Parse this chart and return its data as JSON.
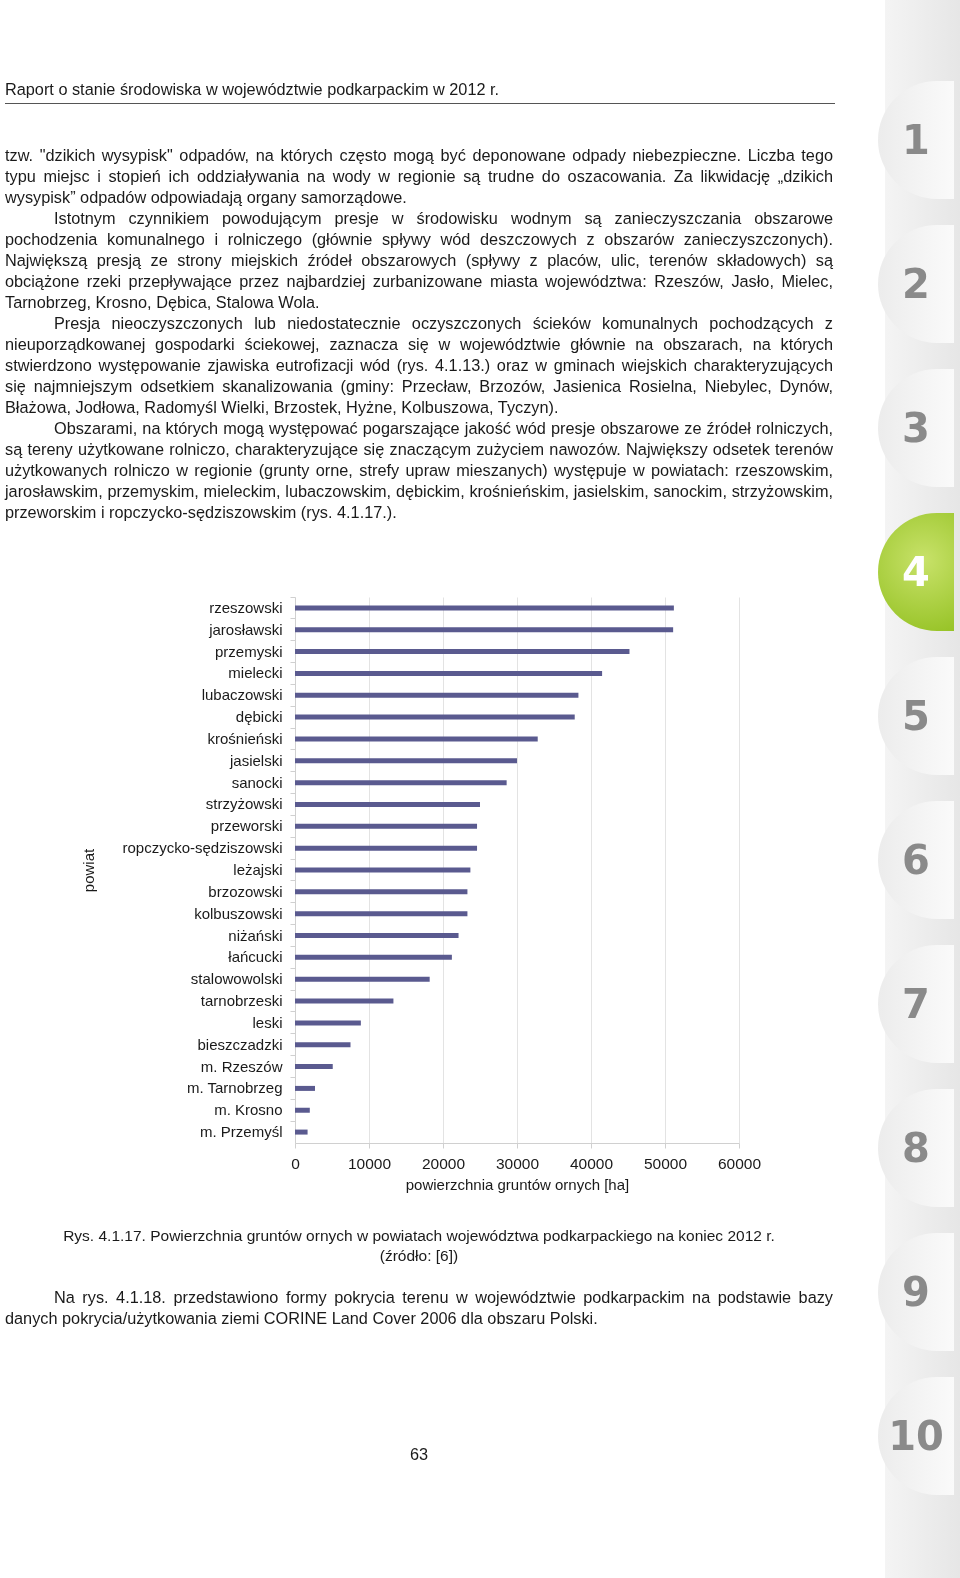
{
  "chart_data": {
    "type": "bar",
    "orientation": "horizontal",
    "xlabel": "powierzchnia gruntów ornych [ha]",
    "ylabel": "powiat",
    "categories": [
      "rzeszowski",
      "jarosławski",
      "przemyski",
      "mielecki",
      "lubaczowski",
      "dębicki",
      "krośnieński",
      "jasielski",
      "sanocki",
      "strzyżowski",
      "przeworski",
      "ropczycko-sędziszowski",
      "leżajski",
      "brzozowski",
      "kolbuszowski",
      "niżański",
      "łańcucki",
      "stalowowolski",
      "tarnobrzeski",
      "leski",
      "bieszczadzki",
      "m. Rzeszów",
      "m. Tarnobrzeg",
      "m. Krosno",
      "m. Przemyśl"
    ],
    "values": [
      51200,
      51100,
      45200,
      41500,
      38300,
      37800,
      32800,
      30000,
      28600,
      25000,
      24600,
      24600,
      23700,
      23300,
      23300,
      22100,
      21200,
      18200,
      13300,
      8900,
      7500,
      5100,
      2700,
      2000,
      1700
    ],
    "color": "#5a5a8f",
    "xlim": [
      0,
      60000
    ],
    "xticks": [
      0,
      10000,
      20000,
      30000,
      40000,
      50000,
      60000
    ],
    "grid": "x",
    "annotations": [
      "Raport o stanie środowiska w województwie podkarpackim w 2012 r.",
      "tzw. \"dzikich wysypisk\" odpadów, na których często mogą być deponowane odpady niebezpieczne. Liczba tego typu miejsc i stopień ich oddziaływania na wody w regionie są trudne do oszacowania. Za likwidację „dzikich wysypisk” odpadów odpowiadają organy samorządowe.",
      "Istotnym czynnikiem powodującym presje w środowisku wodnym są zanieczyszczania obszarowe pochodzenia komunalnego i rolniczego (głównie spływy wód deszczowych z obszarów zanieczyszczonych). Największą presją ze strony miejskich źródeł obszarowych (spływy z placów, ulic, terenów składowych) są obciążone rzeki przepływające przez najbardziej zurbanizowane miasta województwa: Rzeszów, Jasło, Mielec, Tarnobrzeg, Krosno, Dębica, Stalowa Wola.",
      "Presja nieoczyszczonych lub niedostatecznie oczyszczonych ścieków komunalnych pochodzących z nieuporządkowanej gospodarki ściekowej, zaznacza się w województwie głównie na obszarach, na których stwierdzono występowanie zjawiska eutrofizacji wód (rys. 4.1.13.) oraz w gminach wiejskich charakteryzujących się najmniejszym odsetkiem skanalizowania (gminy: Przecław, Brzozów, Jasienica Rosielna, Niebylec, Dynów, Błażowa, Jodłowa, Radomyśl Wielki, Brzostek, Hyżne, Kolbuszowa, Tyczyn).",
      "Obszarami, na których mogą występować pogarszające jakość wód presje obszarowe ze źródeł rolniczych, są tereny użytkowane rolniczo, charakteryzujące się znaczącym zużyciem nawozów. Największy odsetek terenów użytkowanych rolniczo w regionie (grunty orne, strefy upraw mieszanych) występuje w powiatach: rzeszowskim, jarosławskim, przemyskim, mieleckim, lubaczowskim, dębickim, krośnieńskim, jasielskim, sanockim, strzyżowskim, przeworskim i ropczycko-sędziszowskim (rys. 4.1.17.).",
      "Rys. 4.1.17. Powierzchnia gruntów ornych w powiatach województwa podkarpackiego na koniec 2012 r.",
      "(źródło: [6])",
      "Na rys. 4.1.18. przedstawiono formy pokrycia terenu w województwie podkarpackim na podstawie bazy danych pokrycia/użytkowania ziemi CORINE Land Cover 2006 dla obszaru Polski.",
      "63",
      "1",
      "2",
      "3",
      "4",
      "5",
      "6",
      "7",
      "8",
      "9",
      "10"
    ]
  }
}
